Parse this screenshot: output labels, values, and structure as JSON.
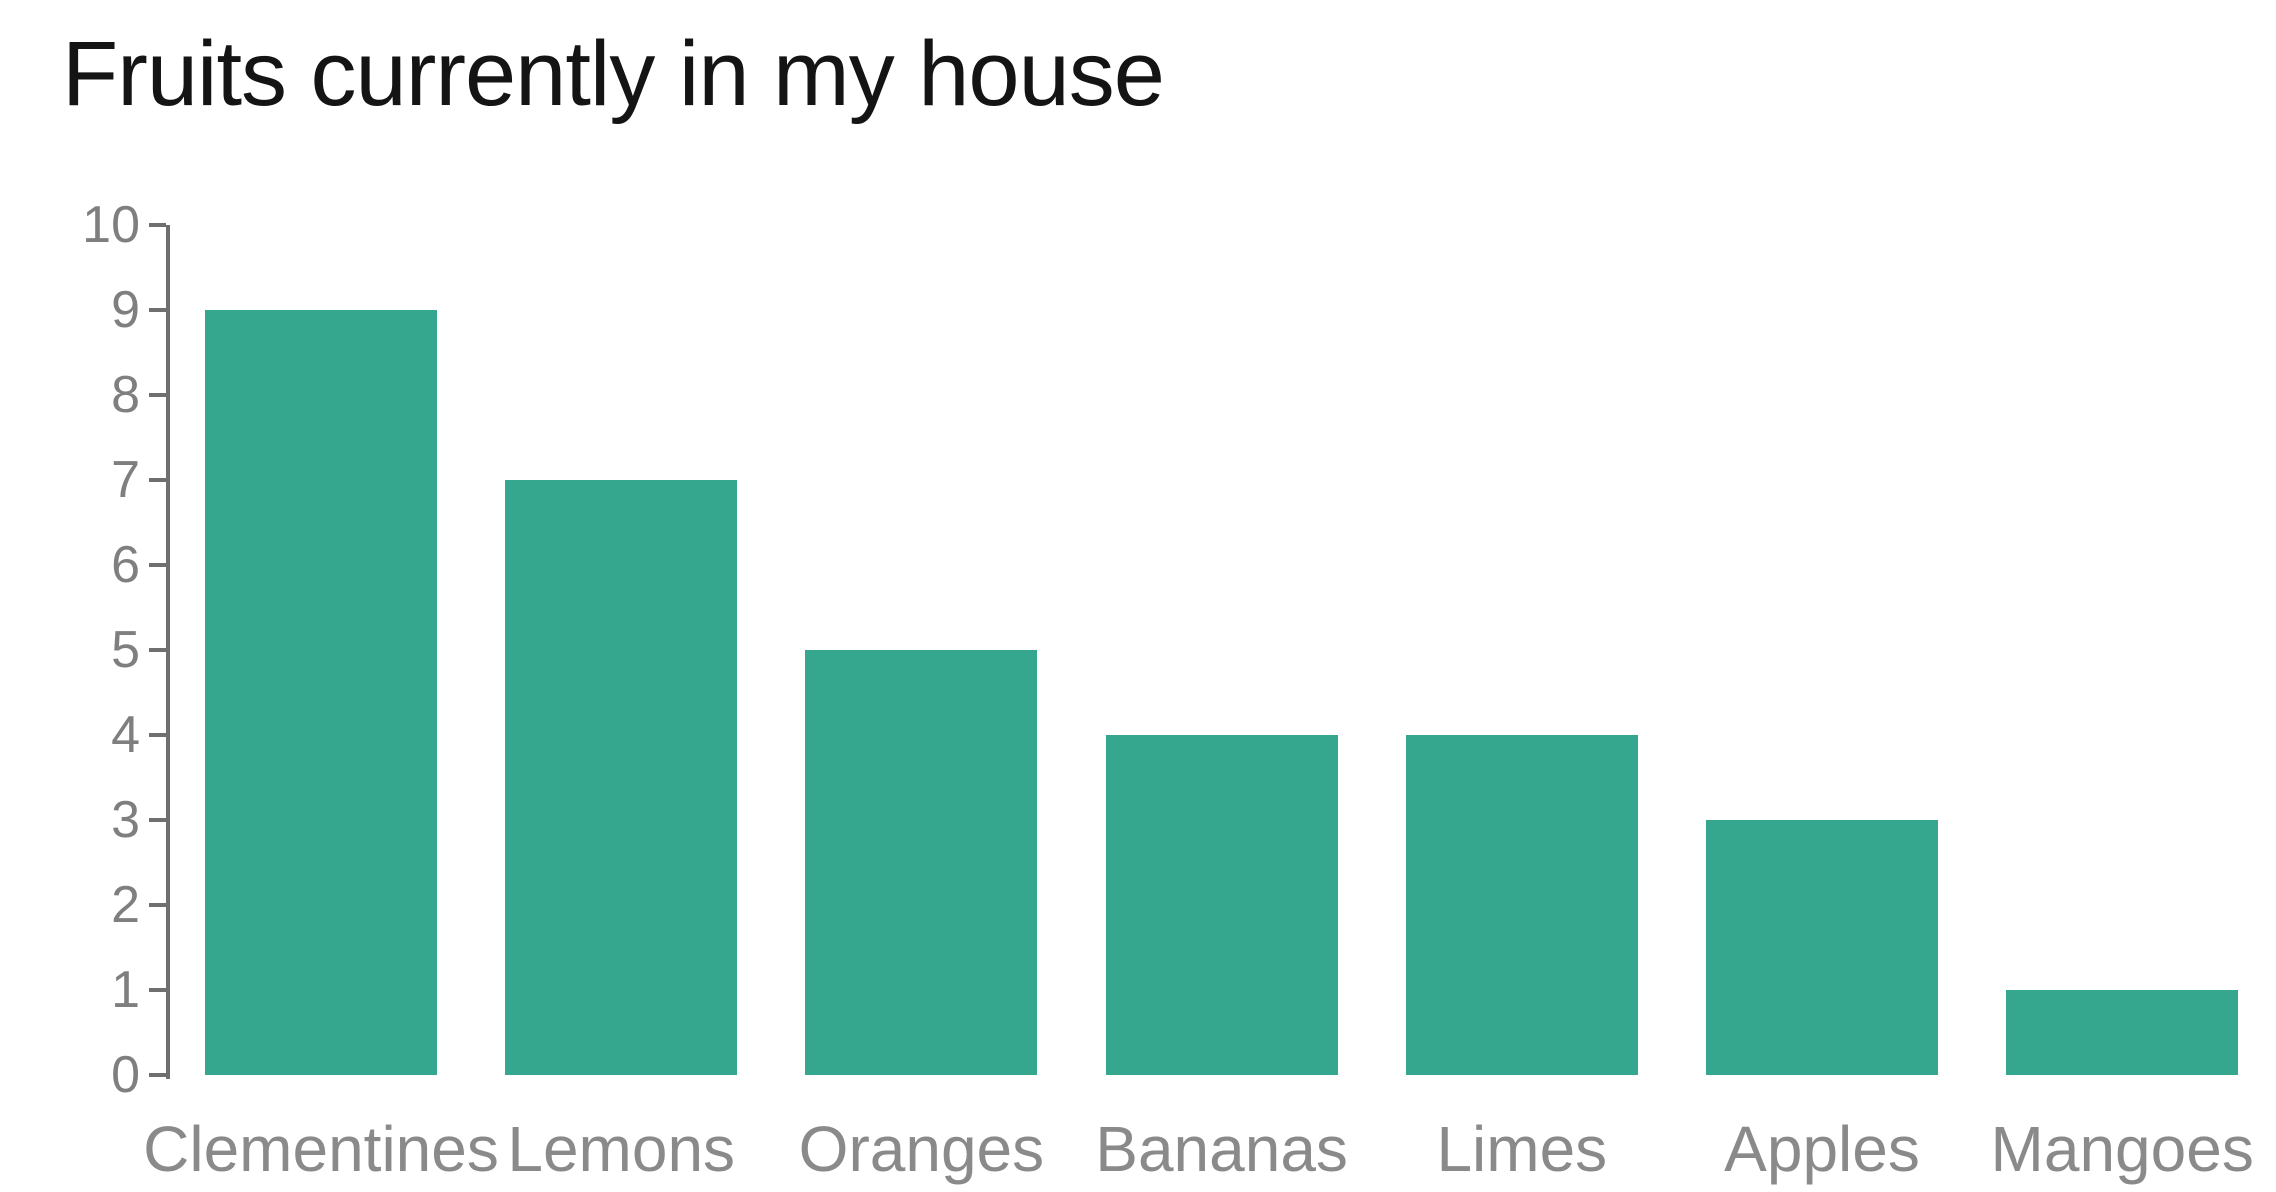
{
  "chart_data": {
    "type": "bar",
    "title": "Fruits currently in my house",
    "categories": [
      "Clementines",
      "Lemons",
      "Oranges",
      "Bananas",
      "Limes",
      "Apples",
      "Mangoes"
    ],
    "values": [
      9,
      7,
      5,
      4,
      4,
      3,
      1
    ],
    "xlabel": "",
    "ylabel": "",
    "ylim": [
      0,
      10
    ],
    "yticks": [
      0,
      1,
      2,
      3,
      4,
      5,
      6,
      7,
      8,
      9,
      10
    ],
    "grid": false,
    "legend": false,
    "colors": {
      "bar": "#35a78e",
      "axis_line": "#6f6f6f",
      "y_tick_label": "#7f7f7f",
      "x_tick_label": "#8a8a8a",
      "title": "#141414",
      "background": "#ffffff"
    }
  }
}
